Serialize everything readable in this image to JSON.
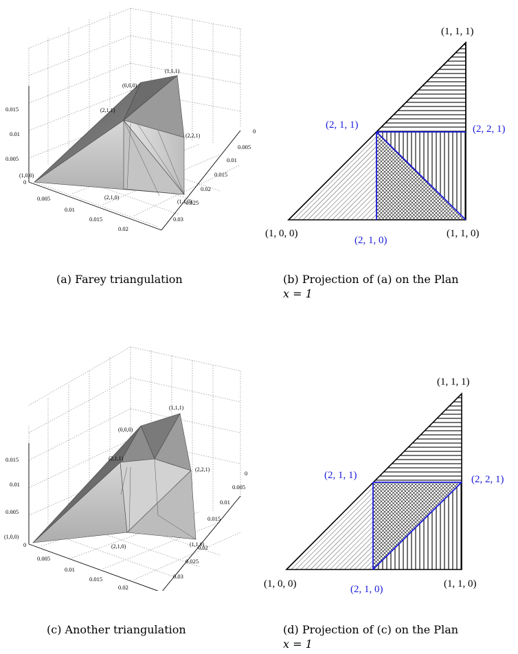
{
  "figure": {
    "panel_a": {
      "caption": "(a) Farey triangulation",
      "vertex_labels": {
        "p111": "(1,1,1)",
        "p000": "(0,0,0)",
        "p211": "(2,1,1)",
        "p221": "(2,2,1)",
        "p100": "(1,0,0)",
        "p210": "(2,1,0)",
        "p110": "(1,1,0)"
      },
      "z_ticks": [
        "0.015",
        "0.01",
        "0.005",
        "0"
      ],
      "x_ticks": [
        "0.005",
        "0.01",
        "0.015",
        "0.02"
      ],
      "y_ticks": [
        "0",
        "0.005",
        "0.01",
        "0.015",
        "0.02",
        "0.025",
        "0.03"
      ]
    },
    "panel_b": {
      "caption_line1": "(b) Projection of (a) on the Plan",
      "caption_line2": "x = 1",
      "labels": {
        "p111": "(1, 1, 1)",
        "p211": "(2, 1, 1)",
        "p221": "(2, 2, 1)",
        "p100": "(1, 0, 0)",
        "p210": "(2, 1, 0)",
        "p110": "(1, 1, 0)"
      }
    },
    "panel_c": {
      "caption": "(c) Another triangulation",
      "vertex_labels": {
        "p111": "(1,1,1)",
        "p000": "(0,0,0)",
        "p211": "(2,1,1)",
        "p221": "(2,2,1)",
        "p100": "(1,0,0)",
        "p210": "(2,1,0)",
        "p110": "(1,1,0)"
      },
      "z_ticks": [
        "0.015",
        "0.01",
        "0.005",
        "0"
      ],
      "x_ticks": [
        "0.005",
        "0.01",
        "0.015",
        "0.02"
      ],
      "y_ticks": [
        "0",
        "0.005",
        "0.01",
        "0.015",
        "0.02",
        "0.025",
        "0.03"
      ]
    },
    "panel_d": {
      "caption_line1": "(d) Projection of (c) on the Plan",
      "caption_line2": "x = 1",
      "labels": {
        "p111": "(1, 1, 1)",
        "p211": "(2, 1, 1)",
        "p221": "(2, 2, 1)",
        "p100": "(1, 0, 0)",
        "p210": "(2, 1, 0)",
        "p110": "(1, 1, 0)"
      }
    },
    "colors": {
      "blue": "#1a1adc",
      "black": "#000000"
    }
  }
}
